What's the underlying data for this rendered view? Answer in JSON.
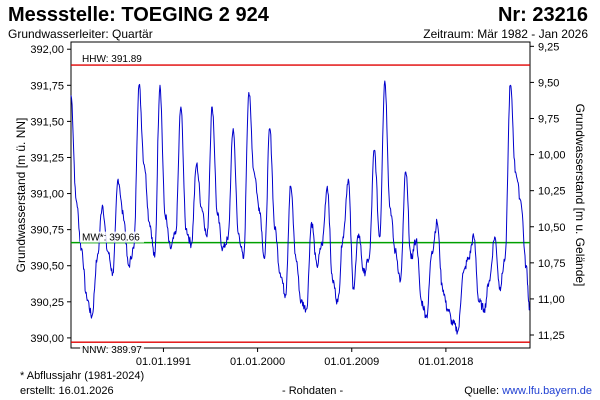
{
  "header": {
    "title": "Messstelle: TOEGING 2 924",
    "number": "Nr: 23216",
    "aquifer": "Grundwasserleiter: Quartär",
    "period": "Zeitraum: Mär 1982 - Jan 2026"
  },
  "footer": {
    "note": "* Abflussjahr (1981-2024)",
    "created": "erstellt:  16.01.2026",
    "rawdata": "- Rohdaten -",
    "source_label": "Quelle:",
    "source_link": "www.lfu.bayern.de"
  },
  "colors": {
    "series": "#0000cc",
    "hhw": "#e00000",
    "nnw": "#e00000",
    "mw": "#00a000",
    "grid": "#dddddd"
  },
  "chart_data": {
    "type": "line",
    "xlabel": "",
    "ylabel": "Grundwasserstand [m ü. NN]",
    "ylabel_right": "Grundwasserstand [m u. Gelände]",
    "xlim": [
      "1982-03-01",
      "2026-01-16"
    ],
    "ylim": [
      389.93,
      392.05
    ],
    "ylim_right_inverted": [
      11.34,
      9.22
    ],
    "x_ticks": [
      {
        "date": "1991-01-01",
        "label": "01.01.1991"
      },
      {
        "date": "2000-01-01",
        "label": "01.01.2000"
      },
      {
        "date": "2009-01-01",
        "label": "01.01.2009"
      },
      {
        "date": "2018-01-01",
        "label": "01.01.2018"
      }
    ],
    "y_ticks": [
      "390,00",
      "390,25",
      "390,50",
      "390,75",
      "391,00",
      "391,25",
      "391,50",
      "391,75",
      "392,00"
    ],
    "y_tick_values": [
      390.0,
      390.25,
      390.5,
      390.75,
      391.0,
      391.25,
      391.5,
      391.75,
      392.0
    ],
    "y_right_ticks": [
      "9,25",
      "9,50",
      "9,75",
      "10,00",
      "10,25",
      "10,50",
      "10,75",
      "11,00",
      "11,25"
    ],
    "y_right_tick_values": [
      9.25,
      9.5,
      9.75,
      10.0,
      10.25,
      10.5,
      10.75,
      11.0,
      11.25
    ],
    "reference_lines": [
      {
        "name": "HHW",
        "label": "HHW: 391.89",
        "value": 391.89
      },
      {
        "name": "MW",
        "label": "MW*: 390.66",
        "value": 390.66
      },
      {
        "name": "NNW",
        "label": "NNW: 389.97",
        "value": 389.97
      }
    ],
    "grid": false,
    "series": [
      {
        "x": [
          "1982-03-01",
          "1982-09-01",
          "1983-03-01",
          "1983-09-01",
          "1984-03-01",
          "1984-09-01",
          "1985-03-01",
          "1985-09-01",
          "1986-03-01",
          "1986-09-01",
          "1987-03-01",
          "1987-09-01",
          "1988-03-01",
          "1988-09-01",
          "1989-03-01",
          "1989-09-01",
          "1990-03-01",
          "1990-09-01",
          "1991-03-01",
          "1991-09-01",
          "1992-03-01",
          "1992-09-01",
          "1993-03-01",
          "1993-09-01",
          "1994-03-01",
          "1994-09-01",
          "1995-03-01",
          "1995-09-01",
          "1996-03-01",
          "1996-09-01",
          "1997-03-01",
          "1997-09-01",
          "1998-03-01",
          "1998-09-01",
          "1999-03-01",
          "1999-09-01",
          "2000-03-01",
          "2000-09-01",
          "2001-03-01",
          "2001-09-01",
          "2002-03-01",
          "2002-09-01",
          "2003-03-01",
          "2003-09-01",
          "2004-03-01",
          "2004-09-01",
          "2005-03-01",
          "2005-09-01",
          "2006-03-01",
          "2006-09-01",
          "2007-03-01",
          "2007-09-01",
          "2008-03-01",
          "2008-09-01",
          "2009-03-01",
          "2009-09-01",
          "2010-03-01",
          "2010-09-01",
          "2011-03-01",
          "2011-09-01",
          "2012-03-01",
          "2012-09-01",
          "2013-03-01",
          "2013-09-01",
          "2014-03-01",
          "2014-09-01",
          "2015-03-01",
          "2015-09-01",
          "2016-03-01",
          "2016-09-01",
          "2017-03-01",
          "2017-09-01",
          "2018-03-01",
          "2018-09-01",
          "2019-03-01",
          "2019-09-01",
          "2020-03-01",
          "2020-09-01",
          "2021-03-01",
          "2021-09-01",
          "2022-03-01",
          "2022-09-01",
          "2023-03-01",
          "2023-09-01",
          "2024-03-01",
          "2024-09-01",
          "2025-03-01",
          "2025-09-01",
          "2026-01-01"
        ],
        "values": [
          391.68,
          390.95,
          390.62,
          390.28,
          390.15,
          390.55,
          390.92,
          390.6,
          390.45,
          391.1,
          390.85,
          390.5,
          390.62,
          391.75,
          391.2,
          390.8,
          390.56,
          391.75,
          390.85,
          390.62,
          390.72,
          391.6,
          390.75,
          390.65,
          391.2,
          390.9,
          390.7,
          391.6,
          390.85,
          390.62,
          390.68,
          391.45,
          390.72,
          390.55,
          391.7,
          391.15,
          390.9,
          390.55,
          391.45,
          390.75,
          390.45,
          390.3,
          391.05,
          390.55,
          390.25,
          390.2,
          390.8,
          390.5,
          390.65,
          391.05,
          390.4,
          390.25,
          390.7,
          391.1,
          390.35,
          390.72,
          390.45,
          390.55,
          391.3,
          390.7,
          391.78,
          390.9,
          390.6,
          390.4,
          391.15,
          390.55,
          390.68,
          390.25,
          390.15,
          390.6,
          390.8,
          390.35,
          390.2,
          390.1,
          390.05,
          390.45,
          390.55,
          390.7,
          390.25,
          390.2,
          390.4,
          390.7,
          390.35,
          390.55,
          391.75,
          391.15,
          390.95,
          390.5,
          390.21
        ]
      }
    ]
  }
}
